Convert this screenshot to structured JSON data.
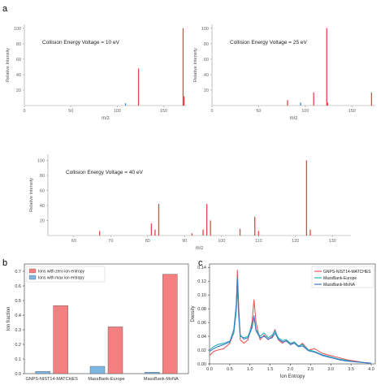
{
  "panel_labels": {
    "a": "a",
    "b": "b",
    "c": "c"
  },
  "colors": {
    "red": "#e8434a",
    "blue": "#3a8fd6",
    "bar_red": "#f47f80",
    "bar_blue": "#7cb6e3",
    "kde_red": "#e8585b",
    "kde_teal": "#27b0b8",
    "kde_blue": "#3c79c9",
    "axis": "#999999",
    "tick_text": "#666666"
  },
  "chart_data": [
    {
      "type": "bar",
      "id": "spectrum-10eV",
      "annotation": "Collision Energy Voltage = 10 eV",
      "xlabel": "m/z",
      "ylabel": "Relative Intensity",
      "xlim": [
        0,
        175
      ],
      "ylim": [
        0,
        105
      ],
      "xticks": [
        0,
        50,
        100,
        150
      ],
      "yticks": [
        20,
        40,
        60,
        80,
        100
      ],
      "peaks": [
        {
          "x": 109,
          "y": 3,
          "color": "blue"
        },
        {
          "x": 123,
          "y": 48,
          "color": "red"
        },
        {
          "x": 171,
          "y": 100,
          "color": "red"
        },
        {
          "x": 172,
          "y": 12,
          "color": "red"
        }
      ]
    },
    {
      "type": "bar",
      "id": "spectrum-25eV",
      "annotation": "Collision Energy Voltage = 25 eV",
      "xlabel": "m/z",
      "ylabel": "Relative Intensity",
      "xlim": [
        0,
        175
      ],
      "ylim": [
        0,
        105
      ],
      "xticks": [
        0,
        50,
        100,
        150
      ],
      "yticks": [
        20,
        40,
        60,
        80,
        100
      ],
      "peaks": [
        {
          "x": 81,
          "y": 7,
          "color": "red"
        },
        {
          "x": 95,
          "y": 4,
          "color": "blue"
        },
        {
          "x": 109,
          "y": 17,
          "color": "red"
        },
        {
          "x": 123,
          "y": 100,
          "color": "red"
        },
        {
          "x": 124,
          "y": 4,
          "color": "red"
        },
        {
          "x": 171,
          "y": 17,
          "color": "red"
        }
      ]
    },
    {
      "type": "bar",
      "id": "spectrum-40eV",
      "annotation": "Collision Energy Voltage = 40 eV",
      "xlabel": "m/z",
      "ylabel": "Relative Intensity",
      "xlim": [
        53,
        135
      ],
      "ylim": [
        0,
        108
      ],
      "xticks": [
        60,
        70,
        80,
        90,
        100,
        110,
        120,
        130
      ],
      "yticks": [
        20,
        40,
        60,
        80,
        100
      ],
      "peaks": [
        {
          "x": 67,
          "y": 6,
          "color": "red"
        },
        {
          "x": 81,
          "y": 16,
          "color": "red"
        },
        {
          "x": 82,
          "y": 8,
          "color": "red"
        },
        {
          "x": 83,
          "y": 42,
          "color": "red"
        },
        {
          "x": 92,
          "y": 3,
          "color": "red"
        },
        {
          "x": 95,
          "y": 8,
          "color": "red"
        },
        {
          "x": 96,
          "y": 42,
          "color": "red"
        },
        {
          "x": 97,
          "y": 20,
          "color": "red"
        },
        {
          "x": 105,
          "y": 9,
          "color": "red"
        },
        {
          "x": 109,
          "y": 25,
          "color": "red"
        },
        {
          "x": 110,
          "y": 6,
          "color": "red"
        },
        {
          "x": 123,
          "y": 100,
          "color": "red"
        },
        {
          "x": 124,
          "y": 8,
          "color": "red"
        }
      ]
    },
    {
      "type": "bar",
      "id": "ion-fraction",
      "xlabel": "",
      "ylabel": "Ion fraction",
      "ylim": [
        0,
        0.75
      ],
      "yticks": [
        0.0,
        0.1,
        0.2,
        0.3,
        0.4,
        0.5,
        0.6,
        0.7
      ],
      "categories": [
        "GNPS-NIST14-MATCHES",
        "MassBank-Europe",
        "MassBank-MoNA"
      ],
      "series": [
        {
          "name": "Ions with zero ion entropy",
          "color": "bar_red",
          "values": [
            0.465,
            0.32,
            0.68
          ]
        },
        {
          "name": "Ions with max ion entropy",
          "color": "bar_blue",
          "values": [
            0.015,
            0.05,
            0.01
          ]
        }
      ],
      "legend": "top-left"
    },
    {
      "type": "line",
      "id": "ion-entropy-density",
      "xlabel": "Ion Entropy",
      "ylabel": "Density",
      "xlim": [
        0,
        4.1
      ],
      "ylim": [
        0,
        0.145
      ],
      "xticks": [
        0.0,
        0.5,
        1.0,
        1.5,
        2.0,
        2.5,
        3.0,
        3.5,
        4.0
      ],
      "yticks": [
        0.0,
        0.02,
        0.04,
        0.06,
        0.08,
        0.1,
        0.12,
        0.14
      ],
      "legend": "top-right",
      "series": [
        {
          "name": "GNPS-NIST14-MATCHES",
          "color": "kde_red",
          "points": [
            [
              0,
              0.012
            ],
            [
              0.1,
              0.018
            ],
            [
              0.2,
              0.02
            ],
            [
              0.35,
              0.022
            ],
            [
              0.5,
              0.03
            ],
            [
              0.6,
              0.045
            ],
            [
              0.66,
              0.08
            ],
            [
              0.69,
              0.136
            ],
            [
              0.72,
              0.085
            ],
            [
              0.76,
              0.035
            ],
            [
              0.85,
              0.03
            ],
            [
              0.95,
              0.035
            ],
            [
              1.05,
              0.06
            ],
            [
              1.1,
              0.093
            ],
            [
              1.15,
              0.06
            ],
            [
              1.25,
              0.035
            ],
            [
              1.35,
              0.042
            ],
            [
              1.45,
              0.035
            ],
            [
              1.55,
              0.04
            ],
            [
              1.62,
              0.05
            ],
            [
              1.7,
              0.035
            ],
            [
              1.8,
              0.03
            ],
            [
              1.9,
              0.034
            ],
            [
              2.0,
              0.028
            ],
            [
              2.1,
              0.032
            ],
            [
              2.2,
              0.025
            ],
            [
              2.3,
              0.03
            ],
            [
              2.45,
              0.02
            ],
            [
              2.6,
              0.022
            ],
            [
              2.8,
              0.015
            ],
            [
              3.0,
              0.012
            ],
            [
              3.2,
              0.009
            ],
            [
              3.4,
              0.006
            ],
            [
              3.6,
              0.004
            ],
            [
              3.8,
              0.002
            ],
            [
              4.0,
              0.001
            ]
          ]
        },
        {
          "name": "MassBank-Europe",
          "color": "kde_teal",
          "points": [
            [
              0,
              0.02
            ],
            [
              0.1,
              0.025
            ],
            [
              0.2,
              0.028
            ],
            [
              0.35,
              0.03
            ],
            [
              0.5,
              0.033
            ],
            [
              0.6,
              0.045
            ],
            [
              0.66,
              0.075
            ],
            [
              0.69,
              0.112
            ],
            [
              0.72,
              0.07
            ],
            [
              0.76,
              0.04
            ],
            [
              0.85,
              0.038
            ],
            [
              0.95,
              0.04
            ],
            [
              1.05,
              0.055
            ],
            [
              1.1,
              0.07
            ],
            [
              1.15,
              0.05
            ],
            [
              1.25,
              0.04
            ],
            [
              1.35,
              0.045
            ],
            [
              1.45,
              0.038
            ],
            [
              1.55,
              0.042
            ],
            [
              1.62,
              0.048
            ],
            [
              1.7,
              0.038
            ],
            [
              1.8,
              0.034
            ],
            [
              1.9,
              0.035
            ],
            [
              2.0,
              0.03
            ],
            [
              2.1,
              0.032
            ],
            [
              2.2,
              0.026
            ],
            [
              2.3,
              0.028
            ],
            [
              2.45,
              0.02
            ],
            [
              2.6,
              0.018
            ],
            [
              2.8,
              0.013
            ],
            [
              3.0,
              0.01
            ],
            [
              3.2,
              0.007
            ],
            [
              3.4,
              0.005
            ],
            [
              3.6,
              0.003
            ],
            [
              3.8,
              0.002
            ],
            [
              4.0,
              0.001
            ]
          ]
        },
        {
          "name": "MassBank-MoNA",
          "color": "kde_blue",
          "points": [
            [
              0,
              0.018
            ],
            [
              0.1,
              0.022
            ],
            [
              0.2,
              0.025
            ],
            [
              0.35,
              0.028
            ],
            [
              0.5,
              0.032
            ],
            [
              0.6,
              0.05
            ],
            [
              0.66,
              0.085
            ],
            [
              0.69,
              0.124
            ],
            [
              0.72,
              0.078
            ],
            [
              0.76,
              0.042
            ],
            [
              0.85,
              0.036
            ],
            [
              0.95,
              0.038
            ],
            [
              1.05,
              0.052
            ],
            [
              1.1,
              0.068
            ],
            [
              1.15,
              0.048
            ],
            [
              1.25,
              0.038
            ],
            [
              1.35,
              0.04
            ],
            [
              1.45,
              0.036
            ],
            [
              1.55,
              0.038
            ],
            [
              1.62,
              0.045
            ],
            [
              1.7,
              0.036
            ],
            [
              1.8,
              0.032
            ],
            [
              1.9,
              0.033
            ],
            [
              2.0,
              0.028
            ],
            [
              2.1,
              0.03
            ],
            [
              2.2,
              0.025
            ],
            [
              2.3,
              0.026
            ],
            [
              2.45,
              0.019
            ],
            [
              2.6,
              0.017
            ],
            [
              2.8,
              0.012
            ],
            [
              3.0,
              0.009
            ],
            [
              3.2,
              0.006
            ],
            [
              3.4,
              0.004
            ],
            [
              3.6,
              0.003
            ],
            [
              3.8,
              0.002
            ],
            [
              4.0,
              0.001
            ]
          ]
        }
      ]
    }
  ]
}
